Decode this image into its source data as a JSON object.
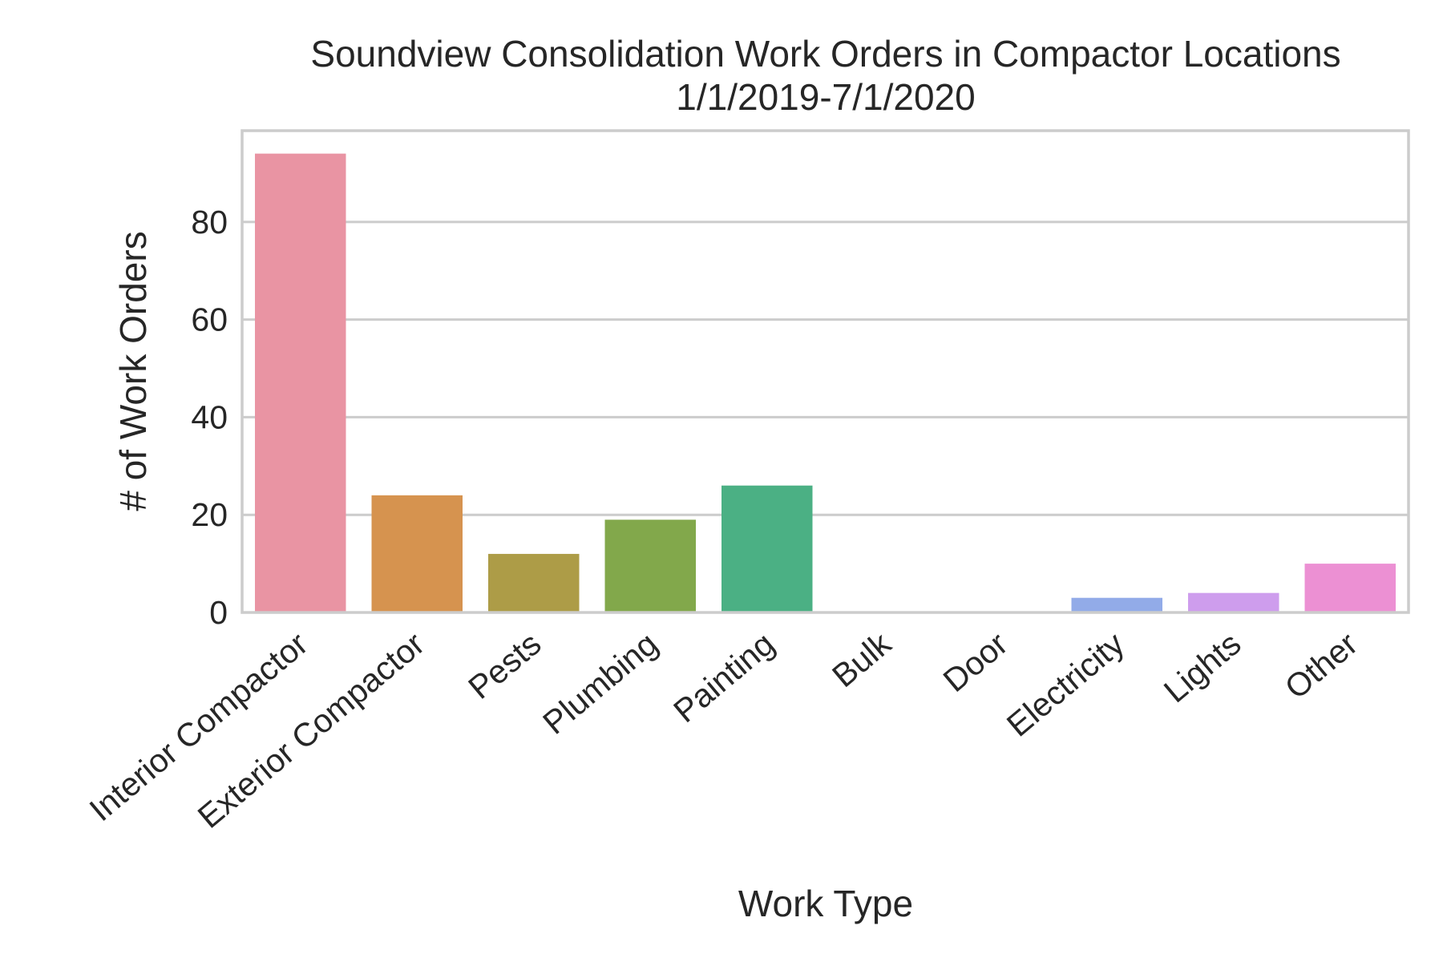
{
  "chart_data": {
    "type": "bar",
    "title_lines": [
      "Soundview Consolidation Work Orders in Compactor Locations",
      "1/1/2019-7/1/2020"
    ],
    "xlabel": "Work Type",
    "ylabel": "# of Work Orders",
    "categories": [
      "Interior Compactor",
      "Exterior Compactor",
      "Pests",
      "Plumbing",
      "Painting",
      "Bulk",
      "Door",
      "Electricity",
      "Lights",
      "Other"
    ],
    "values": [
      94,
      24,
      12,
      19,
      26,
      0,
      0,
      3,
      4,
      10
    ],
    "colors": [
      "#e994a3",
      "#d6934f",
      "#ad9c47",
      "#82a84b",
      "#4bb084",
      "#4daf99",
      "#4fabb5",
      "#92abe8",
      "#ce9ded",
      "#ec90d3"
    ],
    "ylim": [
      0,
      98.7
    ],
    "yticks": [
      0,
      20,
      40,
      60,
      80
    ],
    "grid": true,
    "legend": "none"
  }
}
